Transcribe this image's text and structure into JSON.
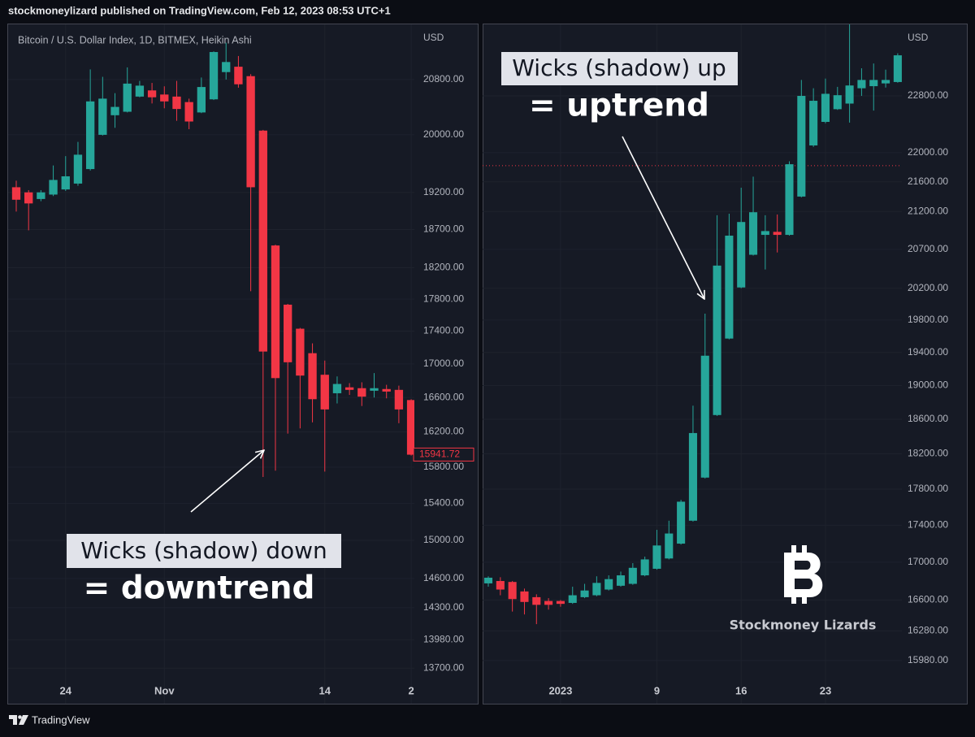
{
  "header": "stockmoneylizard published on TradingView.com, Feb 12, 2023 08:53 UTC+1",
  "footer": "TradingView",
  "chart_data": [
    {
      "type": "candlestick",
      "title": "Bitcoin / U.S. Dollar Index, 1D, BITMEX, Heikin Ashi",
      "axis_label": "USD",
      "log_scale": true,
      "grid": true,
      "up_color": "#26a69a",
      "down_color": "#f23645",
      "categories": [
        null,
        null,
        null,
        null,
        "24",
        null,
        null,
        null,
        null,
        null,
        null,
        null,
        "Nov",
        null,
        null,
        null,
        null,
        null,
        null,
        null,
        null,
        null,
        null,
        null,
        null,
        "14",
        null,
        null,
        null,
        null,
        null,
        null,
        "2"
      ],
      "open": [
        19270,
        19200,
        19110,
        19170,
        19240,
        19320,
        19520,
        20000,
        20280,
        20330,
        20550,
        20640,
        20580,
        20550,
        20470,
        20320,
        20510,
        20910,
        20990,
        20850,
        20060,
        18490,
        17730,
        17430,
        17130,
        16870,
        16650,
        16720,
        16710,
        16680,
        16700,
        16690,
        16570
      ],
      "high": [
        19360,
        19230,
        19230,
        19570,
        19700,
        19900,
        20950,
        20840,
        20600,
        20980,
        20780,
        20750,
        20700,
        20780,
        20520,
        20830,
        21220,
        21350,
        21150,
        20880,
        20070,
        18500,
        17740,
        17440,
        17250,
        17040,
        16850,
        16770,
        16780,
        16890,
        16750,
        16740,
        16580
      ],
      "low": [
        18940,
        18690,
        19080,
        19150,
        19220,
        19290,
        19500,
        19990,
        20100,
        20320,
        20540,
        20450,
        20380,
        20200,
        20080,
        20310,
        20500,
        20800,
        20680,
        17900,
        15690,
        15760,
        16180,
        16240,
        16310,
        15750,
        16530,
        16630,
        16500,
        16600,
        16590,
        16300,
        15930
      ],
      "close": [
        19100,
        19050,
        19200,
        19370,
        19420,
        19720,
        20480,
        20520,
        20400,
        20740,
        20710,
        20540,
        20480,
        20370,
        20190,
        20690,
        21210,
        21060,
        20730,
        19270,
        17150,
        16830,
        17020,
        16860,
        16580,
        16460,
        16760,
        16690,
        16610,
        16710,
        16670,
        16460,
        15940
      ],
      "last_price": 15941.72,
      "ylim": [
        13600,
        21630
      ],
      "yticks": [
        {
          "value": 20800,
          "label": "20800.00"
        },
        {
          "value": 20000,
          "label": "20000.00"
        },
        {
          "value": 19200,
          "label": "19200.00"
        },
        {
          "value": 18700,
          "label": "18700.00"
        },
        {
          "value": 18200,
          "label": "18200.00"
        },
        {
          "value": 17800,
          "label": "17800.00"
        },
        {
          "value": 17400,
          "label": "17400.00"
        },
        {
          "value": 17000,
          "label": "17000.00"
        },
        {
          "value": 16600,
          "label": "16600.00"
        },
        {
          "value": 16200,
          "label": "16200.00"
        },
        {
          "value": 15800,
          "label": "15800.00"
        },
        {
          "value": 15400,
          "label": "15400.00"
        },
        {
          "value": 15000,
          "label": "15000.00"
        },
        {
          "value": 14600,
          "label": "14600.00"
        },
        {
          "value": 14300,
          "label": "14300.00"
        },
        {
          "value": 13980,
          "label": "13980.00"
        },
        {
          "value": 13700,
          "label": "13700.00"
        }
      ],
      "annotations": [
        "Wicks (shadow) down",
        "= downtrend"
      ]
    },
    {
      "type": "candlestick",
      "axis_label": "USD",
      "log_scale": true,
      "grid": true,
      "up_color": "#26a69a",
      "down_color": "#f23645",
      "categories": [
        null,
        null,
        null,
        null,
        null,
        null,
        "2023",
        null,
        null,
        null,
        null,
        null,
        null,
        null,
        "9",
        null,
        null,
        null,
        null,
        null,
        null,
        "16",
        null,
        null,
        null,
        null,
        null,
        null,
        "23",
        null,
        null,
        null,
        null,
        null,
        null
      ],
      "open": [
        16775,
        16800,
        16790,
        16690,
        16630,
        16590,
        16590,
        16570,
        16630,
        16650,
        16710,
        16750,
        16770,
        16860,
        16930,
        17040,
        17200,
        17450,
        17930,
        18650,
        19570,
        20210,
        20630,
        20890,
        20930,
        20890,
        21400,
        22100,
        22430,
        22610,
        22690,
        22910,
        22940,
        22980,
        23000
      ],
      "high": [
        16850,
        16840,
        16800,
        16720,
        16660,
        16620,
        16600,
        16740,
        16770,
        16850,
        16860,
        16900,
        16990,
        17060,
        17350,
        17450,
        17680,
        18760,
        19880,
        21150,
        21170,
        21520,
        21670,
        21150,
        21160,
        21880,
        23030,
        22910,
        23050,
        22930,
        23850,
        23200,
        23270,
        23180,
        23420
      ],
      "low": [
        16740,
        16650,
        16480,
        16450,
        16350,
        16500,
        16530,
        16560,
        16620,
        16640,
        16700,
        16740,
        16760,
        16850,
        16920,
        17030,
        17190,
        17440,
        17920,
        18640,
        19560,
        20200,
        20620,
        20440,
        20660,
        20880,
        21390,
        22080,
        22410,
        22600,
        22420,
        22800,
        22590,
        22920,
        22990
      ],
      "close": [
        16835,
        16710,
        16610,
        16580,
        16550,
        16550,
        16560,
        16650,
        16700,
        16780,
        16820,
        16860,
        16940,
        17030,
        17180,
        17310,
        17660,
        18440,
        19360,
        20490,
        20880,
        21060,
        21190,
        20940,
        20890,
        21840,
        22800,
        22730,
        22830,
        22810,
        22950,
        23030,
        23030,
        23030,
        23390
      ],
      "price_line": 21820,
      "price_line_color": "#f23645",
      "ylim": [
        15800,
        23850
      ],
      "yticks": [
        {
          "value": 22800,
          "label": "22800.00"
        },
        {
          "value": 22000,
          "label": "22000.00"
        },
        {
          "value": 21600,
          "label": "21600.00"
        },
        {
          "value": 21200,
          "label": "21200.00"
        },
        {
          "value": 20700,
          "label": "20700.00"
        },
        {
          "value": 20200,
          "label": "20200.00"
        },
        {
          "value": 19800,
          "label": "19800.00"
        },
        {
          "value": 19400,
          "label": "19400.00"
        },
        {
          "value": 19000,
          "label": "19000.00"
        },
        {
          "value": 18600,
          "label": "18600.00"
        },
        {
          "value": 18200,
          "label": "18200.00"
        },
        {
          "value": 17800,
          "label": "17800.00"
        },
        {
          "value": 17400,
          "label": "17400.00"
        },
        {
          "value": 17000,
          "label": "17000.00"
        },
        {
          "value": 16600,
          "label": "16600.00"
        },
        {
          "value": 16280,
          "label": "16280.00"
        },
        {
          "value": 15980,
          "label": "15980.00"
        }
      ],
      "annotations": [
        "Wicks (shadow) up",
        "= uptrend"
      ],
      "watermark": "Stockmoney Lizards"
    }
  ]
}
